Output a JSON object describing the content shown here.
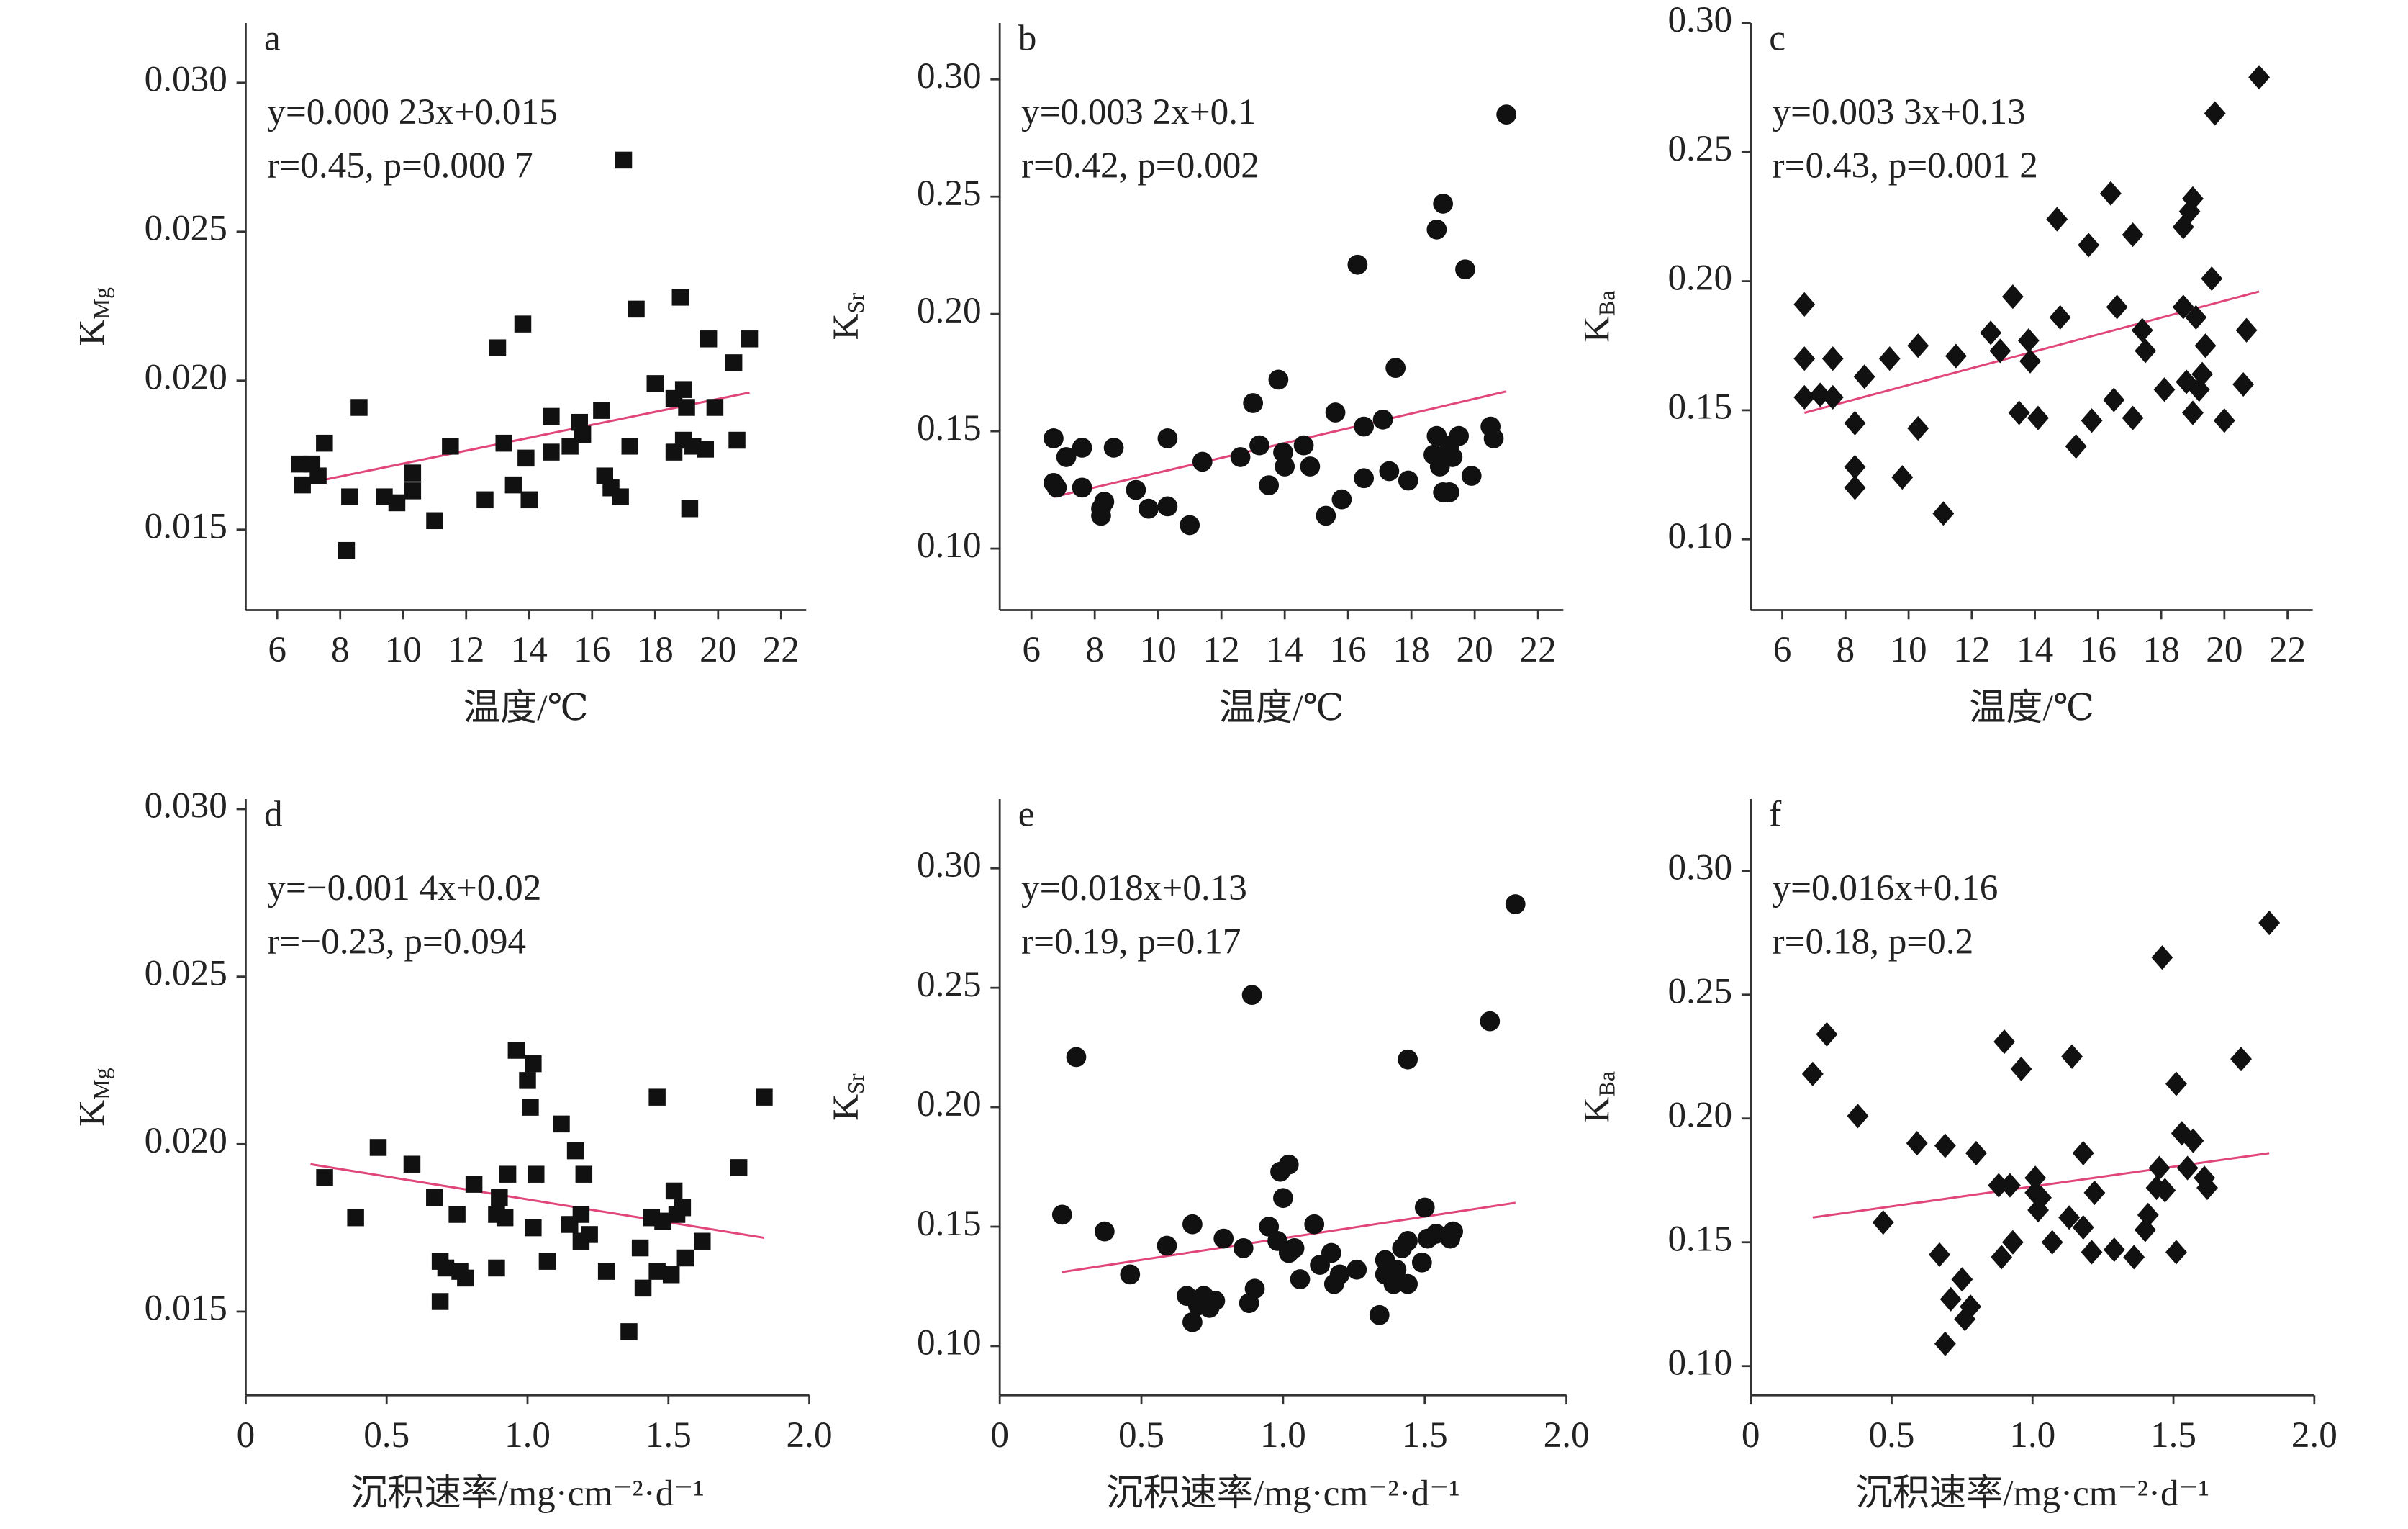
{
  "chart_data": [
    {
      "type": "scatter",
      "panel_label": "a",
      "equation": [
        "y=0.000 23x+0.015",
        "r=0.45, p=0.000 7"
      ],
      "xlabel": "温度/℃",
      "ylabel": "K",
      "ylabel_sub": "Mg",
      "xlim": [
        5,
        22.8
      ],
      "xticks": [
        6,
        8,
        10,
        12,
        14,
        16,
        18,
        20,
        22
      ],
      "ylim": [
        0.0123,
        0.032
      ],
      "yticks": [
        0.015,
        {
          "value": 0.02,
          "label": "0.020"
        },
        0.025,
        {
          "value": 0.03,
          "label": "0.030"
        }
      ],
      "series": [
        {
          "marker": "square",
          "color": "#111111",
          "x": [
            6.7,
            6.8,
            7.1,
            7.3,
            7.5,
            8.3,
            8.2,
            8.6,
            9.4,
            9.8,
            10.3,
            10.3,
            11.0,
            11.5,
            12.6,
            13.0,
            13.2,
            13.5,
            13.8,
            13.9,
            14.0,
            14.7,
            14.7,
            15.3,
            15.6,
            15.7,
            16.3,
            16.4,
            16.6,
            16.9,
            17.0,
            17.2,
            17.4,
            18.0,
            18.6,
            18.6,
            18.8,
            18.9,
            18.9,
            19.0,
            19.1,
            19.2,
            19.6,
            19.7,
            19.9,
            20.5,
            20.6,
            21.0
          ],
          "y": [
            0.0172,
            0.0165,
            0.0172,
            0.0168,
            0.0179,
            0.0161,
            0.0143,
            0.0191,
            0.0161,
            0.0159,
            0.0163,
            0.0169,
            0.0153,
            0.0178,
            0.016,
            0.0211,
            0.0179,
            0.0165,
            0.0219,
            0.0174,
            0.016,
            0.0188,
            0.0176,
            0.0178,
            0.0186,
            0.0182,
            0.019,
            0.0168,
            0.0164,
            0.0161,
            0.0274,
            0.0178,
            0.0224,
            0.0199,
            0.0176,
            0.0194,
            0.0228,
            0.018,
            0.0197,
            0.0191,
            0.0157,
            0.0178,
            0.0177,
            0.0214,
            0.0191,
            0.0206,
            0.018,
            0.0214
          ]
        }
      ],
      "fit": {
        "color": "#e0457b",
        "x": [
          6.7,
          21.0
        ],
        "y": [
          0.0165,
          0.0196
        ]
      }
    },
    {
      "type": "scatter",
      "panel_label": "b",
      "equation": [
        "y=0.003 2x+0.1",
        "r=0.42, p=0.002"
      ],
      "xlabel": "温度/℃",
      "ylabel": "K",
      "ylabel_sub": "Sr",
      "xlim": [
        5,
        22.8
      ],
      "xticks": [
        6,
        8,
        10,
        12,
        14,
        16,
        18,
        20,
        22
      ],
      "ylim": [
        0.0738,
        0.324
      ],
      "yticks": [
        {
          "value": 0.1,
          "label": "0.10"
        },
        0.15,
        {
          "value": 0.2,
          "label": "0.20"
        },
        0.25,
        {
          "value": 0.3,
          "label": "0.30"
        }
      ],
      "series": [
        {
          "marker": "circle",
          "color": "#111111",
          "x": [
            6.7,
            6.7,
            6.8,
            7.1,
            7.6,
            7.6,
            8.2,
            8.2,
            8.3,
            8.6,
            9.3,
            9.7,
            10.3,
            10.3,
            11.0,
            11.4,
            12.6,
            13.0,
            13.2,
            13.5,
            13.8,
            13.95,
            14.0,
            14.6,
            14.8,
            15.3,
            15.6,
            15.8,
            16.3,
            16.5,
            16.5,
            17.1,
            17.3,
            17.5,
            17.9,
            18.8,
            19.0,
            18.7,
            18.8,
            18.9,
            19.0,
            19.2,
            19.3,
            19.5,
            19.7,
            19.9,
            20.5,
            20.6,
            21.0,
            19.2
          ],
          "y": [
            0.147,
            0.128,
            0.126,
            0.139,
            0.143,
            0.126,
            0.117,
            0.114,
            0.12,
            0.143,
            0.125,
            0.117,
            0.147,
            0.118,
            0.11,
            0.137,
            0.139,
            0.162,
            0.144,
            0.127,
            0.172,
            0.141,
            0.135,
            0.144,
            0.135,
            0.114,
            0.158,
            0.121,
            0.221,
            0.152,
            0.13,
            0.155,
            0.133,
            0.177,
            0.129,
            0.236,
            0.247,
            0.14,
            0.148,
            0.135,
            0.124,
            0.144,
            0.139,
            0.148,
            0.219,
            0.131,
            0.152,
            0.147,
            0.285,
            0.124
          ]
        }
      ],
      "fit": {
        "color": "#e0457b",
        "x": [
          6.7,
          21.0
        ],
        "y": [
          0.122,
          0.167
        ]
      }
    },
    {
      "type": "scatter",
      "panel_label": "c",
      "equation": [
        "y=0.003 3x+0.13",
        "r=0.43, p=0.001 2"
      ],
      "xlabel": "温度/℃",
      "ylabel": "K",
      "ylabel_sub": "Ba",
      "xlim": [
        5,
        22.8
      ],
      "xticks": [
        6,
        8,
        10,
        12,
        14,
        16,
        18,
        20,
        22
      ],
      "ylim": [
        0.0726,
        0.3
      ],
      "yticks": [
        {
          "value": 0.1,
          "label": "0.10"
        },
        0.15,
        {
          "value": 0.2,
          "label": "0.20"
        },
        0.25,
        {
          "value": 0.3,
          "label": "0.30"
        }
      ],
      "series": [
        {
          "marker": "diamond",
          "color": "#111111",
          "x": [
            6.7,
            6.7,
            6.7,
            7.2,
            7.6,
            7.6,
            8.3,
            8.3,
            8.3,
            8.6,
            9.4,
            9.8,
            10.3,
            10.3,
            11.1,
            11.5,
            12.6,
            12.9,
            13.3,
            13.5,
            13.8,
            13.85,
            14.1,
            14.7,
            14.8,
            15.3,
            15.7,
            15.8,
            16.4,
            16.5,
            16.6,
            17.1,
            17.1,
            17.4,
            17.5,
            18.1,
            18.7,
            18.7,
            18.8,
            18.9,
            19.0,
            19.0,
            19.1,
            19.2,
            19.3,
            19.4,
            19.6,
            19.7,
            20.0,
            20.6,
            20.7,
            21.1
          ],
          "y": [
            0.191,
            0.17,
            0.155,
            0.156,
            0.17,
            0.155,
            0.145,
            0.128,
            0.12,
            0.163,
            0.17,
            0.124,
            0.175,
            0.143,
            0.11,
            0.171,
            0.18,
            0.173,
            0.194,
            0.149,
            0.177,
            0.169,
            0.147,
            0.224,
            0.186,
            0.136,
            0.214,
            0.146,
            0.234,
            0.154,
            0.19,
            0.218,
            0.147,
            0.181,
            0.173,
            0.158,
            0.221,
            0.19,
            0.161,
            0.227,
            0.149,
            0.232,
            0.186,
            0.158,
            0.164,
            0.175,
            0.201,
            0.265,
            0.146,
            0.16,
            0.181,
            0.279
          ]
        }
      ],
      "fit": {
        "color": "#e0457b",
        "x": [
          6.7,
          21.1
        ],
        "y": [
          0.149,
          0.196
        ]
      }
    },
    {
      "type": "scatter",
      "panel_label": "d",
      "equation": [
        "y=−0.001 4x+0.02",
        "r=−0.23, p=0.094"
      ],
      "xlabel": "沉积速率/mg·cm⁻²·d⁻¹",
      "ylabel": "K",
      "ylabel_sub": "Mg",
      "xlim": [
        0,
        2
      ],
      "xticks": [
        0,
        0.5,
        {
          "value": 1,
          "label": "1.0"
        },
        1.5,
        {
          "value": 2,
          "label": "2.0"
        }
      ],
      "ylim": [
        0.0125,
        0.0303
      ],
      "yticks": [
        0.015,
        {
          "value": 0.02,
          "label": "0.020"
        },
        0.025,
        {
          "value": 0.03,
          "label": "0.030"
        }
      ],
      "series": [
        {
          "marker": "square",
          "color": "#111111",
          "x": [
            0.28,
            0.39,
            0.47,
            0.59,
            0.67,
            0.69,
            0.69,
            0.71,
            0.75,
            0.76,
            0.78,
            0.81,
            0.89,
            0.89,
            0.9,
            0.92,
            0.93,
            0.96,
            1.0,
            1.02,
            1.01,
            1.02,
            1.03,
            1.07,
            1.12,
            1.15,
            1.17,
            1.19,
            1.19,
            1.2,
            1.22,
            1.28,
            1.36,
            1.4,
            1.41,
            1.44,
            1.46,
            1.46,
            1.48,
            1.51,
            1.52,
            1.53,
            1.55,
            1.56,
            1.62,
            1.75,
            1.84
          ],
          "y": [
            0.019,
            0.0178,
            0.0199,
            0.0194,
            0.0184,
            0.0165,
            0.0153,
            0.0163,
            0.0179,
            0.0162,
            0.016,
            0.0188,
            0.0179,
            0.0163,
            0.0184,
            0.0178,
            0.0191,
            0.0228,
            0.0219,
            0.0224,
            0.0211,
            0.0175,
            0.0191,
            0.0165,
            0.0206,
            0.0176,
            0.0198,
            0.0171,
            0.0179,
            0.0191,
            0.0173,
            0.0162,
            0.0144,
            0.0169,
            0.0157,
            0.0178,
            0.0162,
            0.0214,
            0.0177,
            0.0161,
            0.0186,
            0.0179,
            0.0181,
            0.0166,
            0.0171,
            0.0193,
            0.0214
          ]
        }
      ],
      "fit": {
        "color": "#e0457b",
        "x": [
          0.23,
          1.84
        ],
        "y": [
          0.0194,
          0.0172
        ]
      }
    },
    {
      "type": "scatter",
      "panel_label": "e",
      "equation": [
        "y=0.018x+0.13",
        "r=0.19, p=0.17"
      ],
      "xlabel": "沉积速率/mg·cm⁻²·d⁻¹",
      "ylabel": "K",
      "ylabel_sub": "Sr",
      "xlim": [
        0,
        2
      ],
      "xticks": [
        0,
        0.5,
        {
          "value": 1,
          "label": "1.0"
        },
        1.5,
        {
          "value": 2,
          "label": "2.0"
        }
      ],
      "ylim": [
        0.0794,
        0.329
      ],
      "yticks": [
        {
          "value": 0.1,
          "label": "0.10"
        },
        0.15,
        {
          "value": 0.2,
          "label": "0.20"
        },
        0.25,
        {
          "value": 0.3,
          "label": "0.30"
        }
      ],
      "series": [
        {
          "marker": "circle",
          "color": "#111111",
          "x": [
            0.22,
            0.27,
            0.37,
            0.46,
            0.59,
            0.66,
            0.68,
            0.68,
            0.7,
            0.72,
            0.74,
            0.76,
            0.79,
            0.86,
            0.88,
            0.89,
            0.9,
            0.95,
            0.98,
            0.99,
            1.0,
            1.02,
            1.02,
            1.04,
            1.06,
            1.11,
            1.13,
            1.17,
            1.18,
            1.2,
            1.26,
            1.34,
            1.36,
            1.36,
            1.39,
            1.4,
            1.42,
            1.44,
            1.44,
            1.44,
            1.49,
            1.5,
            1.51,
            1.54,
            1.59,
            1.6,
            1.73,
            1.82
          ],
          "y": [
            0.155,
            0.221,
            0.148,
            0.13,
            0.142,
            0.121,
            0.151,
            0.11,
            0.117,
            0.121,
            0.116,
            0.119,
            0.145,
            0.141,
            0.118,
            0.247,
            0.124,
            0.15,
            0.144,
            0.173,
            0.162,
            0.176,
            0.139,
            0.141,
            0.128,
            0.151,
            0.134,
            0.139,
            0.126,
            0.13,
            0.132,
            0.113,
            0.13,
            0.136,
            0.126,
            0.132,
            0.141,
            0.144,
            0.22,
            0.126,
            0.135,
            0.158,
            0.145,
            0.147,
            0.145,
            0.148,
            0.236,
            0.285
          ]
        }
      ],
      "fit": {
        "color": "#e0457b",
        "x": [
          0.22,
          1.82
        ],
        "y": [
          0.131,
          0.16
        ]
      }
    },
    {
      "type": "scatter",
      "panel_label": "f",
      "equation": [
        "y=0.016x+0.16",
        "r=0.18, p=0.2"
      ],
      "xlabel": "沉积速率/mg·cm⁻²·d⁻¹",
      "ylabel": "K",
      "ylabel_sub": "Ba",
      "xlim": [
        0,
        2
      ],
      "xticks": [
        0,
        0.5,
        {
          "value": 1,
          "label": "1.0"
        },
        1.5,
        {
          "value": 2,
          "label": "2.0"
        }
      ],
      "ylim": [
        0.0882,
        0.329
      ],
      "yticks": [
        {
          "value": 0.1,
          "label": "0.10"
        },
        0.15,
        {
          "value": 0.2,
          "label": "0.20"
        },
        0.25,
        {
          "value": 0.3,
          "label": "0.30"
        }
      ],
      "series": [
        {
          "marker": "diamond",
          "color": "#111111",
          "x": [
            0.22,
            0.27,
            0.38,
            0.47,
            0.59,
            0.67,
            0.69,
            0.69,
            0.71,
            0.75,
            0.76,
            0.78,
            0.8,
            0.88,
            0.89,
            0.9,
            0.92,
            0.93,
            0.96,
            1.01,
            1.01,
            1.02,
            1.03,
            1.07,
            1.13,
            1.14,
            1.18,
            1.18,
            1.21,
            1.22,
            1.29,
            1.36,
            1.4,
            1.41,
            1.44,
            1.45,
            1.46,
            1.47,
            1.51,
            1.51,
            1.53,
            1.55,
            1.57,
            1.61,
            1.62,
            1.74,
            1.84
          ],
          "y": [
            0.218,
            0.234,
            0.201,
            0.158,
            0.19,
            0.145,
            0.189,
            0.109,
            0.127,
            0.135,
            0.119,
            0.124,
            0.186,
            0.173,
            0.144,
            0.231,
            0.173,
            0.15,
            0.22,
            0.176,
            0.17,
            0.163,
            0.168,
            0.15,
            0.16,
            0.225,
            0.156,
            0.186,
            0.146,
            0.17,
            0.147,
            0.144,
            0.155,
            0.161,
            0.172,
            0.18,
            0.265,
            0.171,
            0.214,
            0.146,
            0.194,
            0.18,
            0.191,
            0.176,
            0.172,
            0.224,
            0.279
          ]
        }
      ],
      "fit": {
        "color": "#e0457b",
        "x": [
          0.22,
          1.84
        ],
        "y": [
          0.16,
          0.186
        ]
      }
    }
  ]
}
